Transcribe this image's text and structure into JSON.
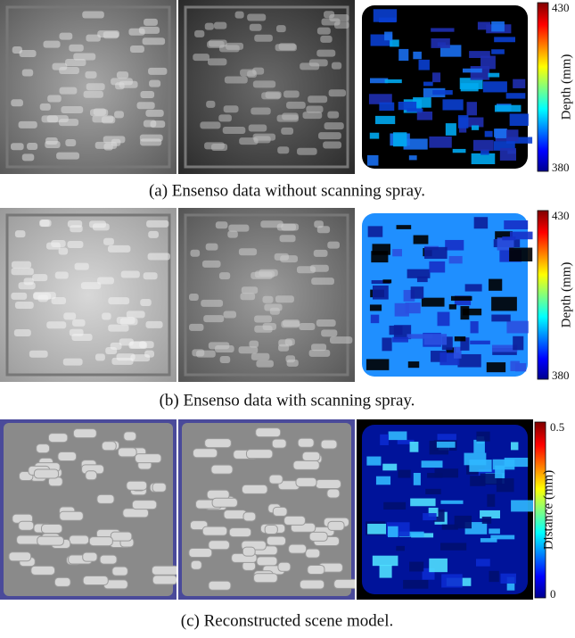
{
  "panels": [
    {
      "caption": "(a) Ensenso data without scanning spray.",
      "colorbar": {
        "label": "Depth (mm)",
        "top": "430",
        "bottom": "380"
      }
    },
    {
      "caption": "(b) Ensenso data with scanning spray.",
      "colorbar": {
        "label": "Depth (mm)",
        "top": "430",
        "bottom": "380"
      }
    },
    {
      "caption": "(c) Reconstructed scene model.",
      "colorbar": {
        "label": "Distance (mm)",
        "top": "0.5",
        "bottom": "0"
      }
    }
  ]
}
